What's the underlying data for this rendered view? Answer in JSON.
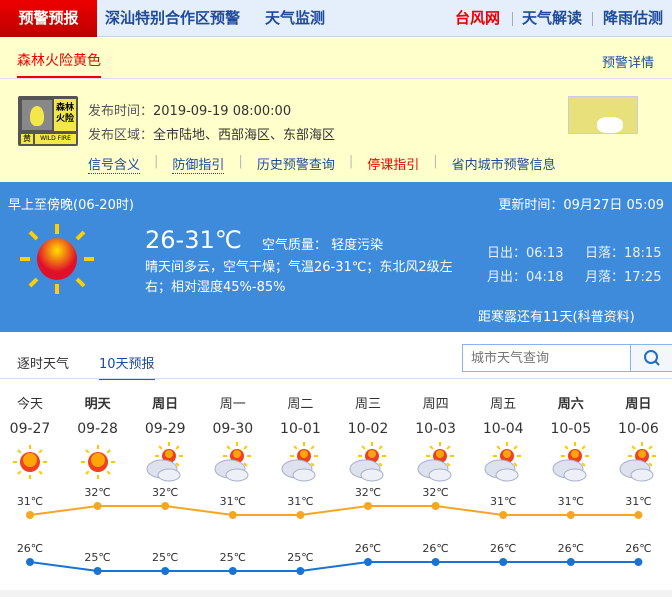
{
  "nav": {
    "active": "预警预报",
    "items": [
      "深汕特别合作区预警",
      "天气监测"
    ],
    "right": [
      "台风网",
      "天气解读",
      "降雨估测"
    ]
  },
  "warning": {
    "tab": "森林火险黄色",
    "detail_link": "预警详情",
    "icon_text": {
      "top": "森林火险",
      "level": "黄",
      "en": "WILD FIRE"
    },
    "time_label": "发布时间：",
    "time": "2019-09-19 08:00:00",
    "area_label": "发布区域：",
    "area": "全市陆地、西部海区、东部海区",
    "links": [
      "信号含义",
      "防御指引",
      "历史预警查询",
      "停课指引",
      "省内城市预警信息"
    ]
  },
  "today": {
    "period": "早上至傍晚(06-20时)",
    "update": "更新时间：09月27日 05:09",
    "temp": "26-31℃",
    "air": "空气质量： 轻度污染",
    "desc": "晴天间多云，空气干燥；气温26-31℃；东北风2级左右；相对湿度45%-85%",
    "sunrise": "日出：06:13",
    "sunset": "日落：18:15",
    "moonrise": "月出：04:18",
    "moonset": "月落：17:25",
    "solar_term": "距寒露还有11天(科普资料)"
  },
  "tabs": [
    "逐时天气",
    "10天预报"
  ],
  "search": {
    "placeholder": "城市天气查询"
  },
  "forecast": {
    "days": [
      {
        "day": "今天",
        "date": "09-27",
        "icon": "sunny",
        "high": "31℃",
        "low": "26℃",
        "bold": false
      },
      {
        "day": "明天",
        "date": "09-28",
        "icon": "sunny",
        "high": "32℃",
        "low": "25℃",
        "bold": true
      },
      {
        "day": "周日",
        "date": "09-29",
        "icon": "partly-cloudy",
        "high": "32℃",
        "low": "25℃",
        "bold": true
      },
      {
        "day": "周一",
        "date": "09-30",
        "icon": "partly-cloudy",
        "high": "31℃",
        "low": "25℃",
        "bold": false
      },
      {
        "day": "周二",
        "date": "10-01",
        "icon": "partly-cloudy",
        "high": "31℃",
        "low": "25℃",
        "bold": false
      },
      {
        "day": "周三",
        "date": "10-02",
        "icon": "sunny-intervals",
        "high": "32℃",
        "low": "26℃",
        "bold": false
      },
      {
        "day": "周四",
        "date": "10-03",
        "icon": "sunny-intervals",
        "high": "32℃",
        "low": "26℃",
        "bold": false
      },
      {
        "day": "周五",
        "date": "10-04",
        "icon": "partly-cloudy",
        "high": "31℃",
        "low": "26℃",
        "bold": false
      },
      {
        "day": "周六",
        "date": "10-05",
        "icon": "partly-cloudy",
        "high": "31℃",
        "low": "26℃",
        "bold": true
      },
      {
        "day": "周日",
        "date": "10-06",
        "icon": "partly-cloudy",
        "high": "31℃",
        "low": "26℃",
        "bold": true
      }
    ],
    "high_values": [
      31,
      32,
      32,
      31,
      31,
      32,
      32,
      31,
      31,
      31
    ],
    "low_values": [
      26,
      25,
      25,
      25,
      25,
      26,
      26,
      26,
      26,
      26
    ],
    "colors": {
      "high": "#f5a623",
      "low": "#1a73d0"
    }
  }
}
